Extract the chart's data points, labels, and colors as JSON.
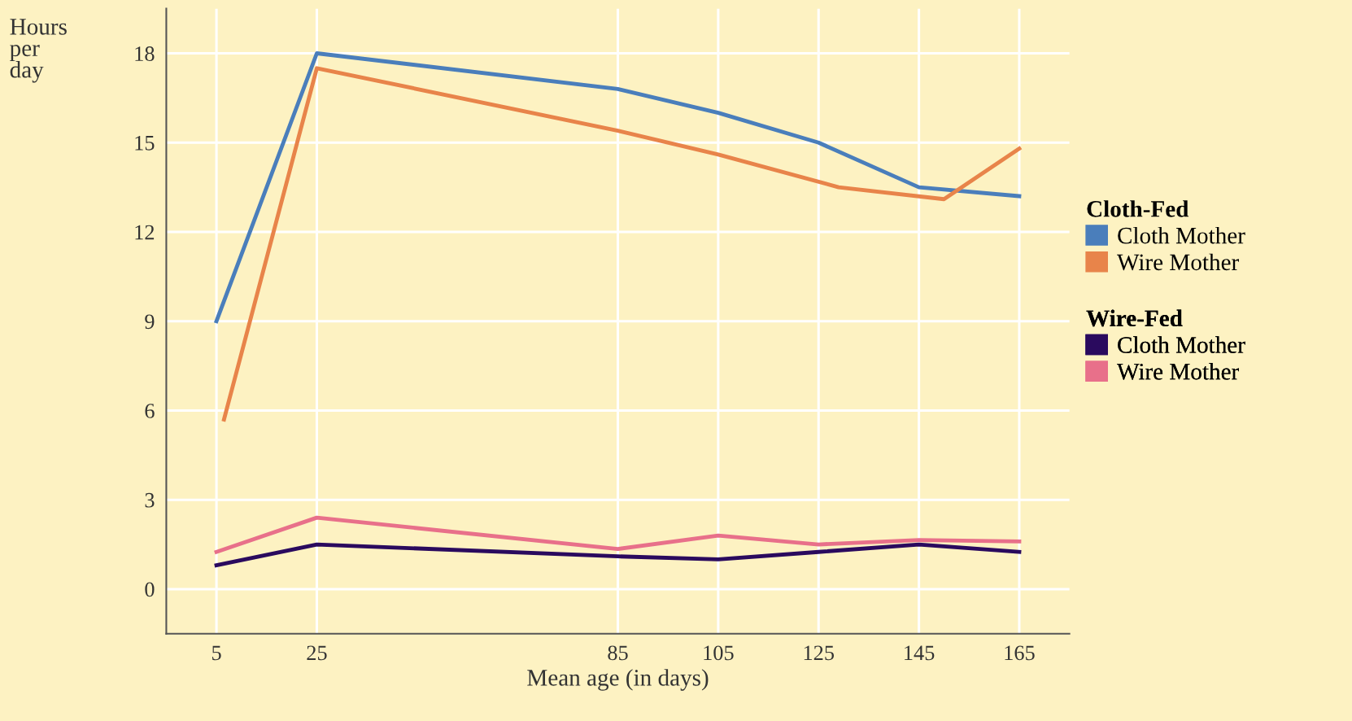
{
  "chart_data": {
    "type": "line",
    "xlabel": "Mean age (in days)",
    "ylabel": "Hours\nper\nday",
    "annotations": [
      "Cloth-Fed",
      "Wire-Fed"
    ],
    "xlim": [
      -5,
      175
    ],
    "xticks": [
      5,
      25,
      85,
      105,
      125,
      145,
      165
    ],
    "ylim": [
      -1.5,
      19.5
    ],
    "yticks": [
      0,
      3,
      6,
      9,
      12,
      15,
      18
    ],
    "grid": true,
    "legend": "right",
    "marker": "none",
    "line_style": "solid",
    "series": [
      {
        "name": "Cloth Mother",
        "color": "#4a7ebb",
        "x": [
          5,
          25,
          85,
          105,
          125,
          145,
          165
        ],
        "values": [
          9.0,
          18.0,
          16.8,
          16.0,
          15.0,
          13.5,
          13.2
        ]
      },
      {
        "name": "Wire Mother",
        "color": "#e8844a",
        "x": [
          6.5,
          25,
          85,
          105,
          129,
          150,
          165
        ],
        "values": [
          5.7,
          17.5,
          15.4,
          14.6,
          13.5,
          13.1,
          14.8
        ]
      },
      {
        "name": "Cloth Mother",
        "color": "#2a0a5e",
        "x": [
          5,
          25,
          85,
          105,
          125,
          145,
          165
        ],
        "values": [
          0.8,
          1.5,
          1.1,
          1.0,
          1.25,
          1.5,
          1.25
        ]
      },
      {
        "name": "Wire Mother",
        "color": "#e8708a",
        "x": [
          5,
          25,
          85,
          105,
          125,
          145,
          165
        ],
        "values": [
          1.25,
          2.4,
          1.35,
          1.8,
          1.5,
          1.65,
          1.6
        ]
      }
    ]
  }
}
